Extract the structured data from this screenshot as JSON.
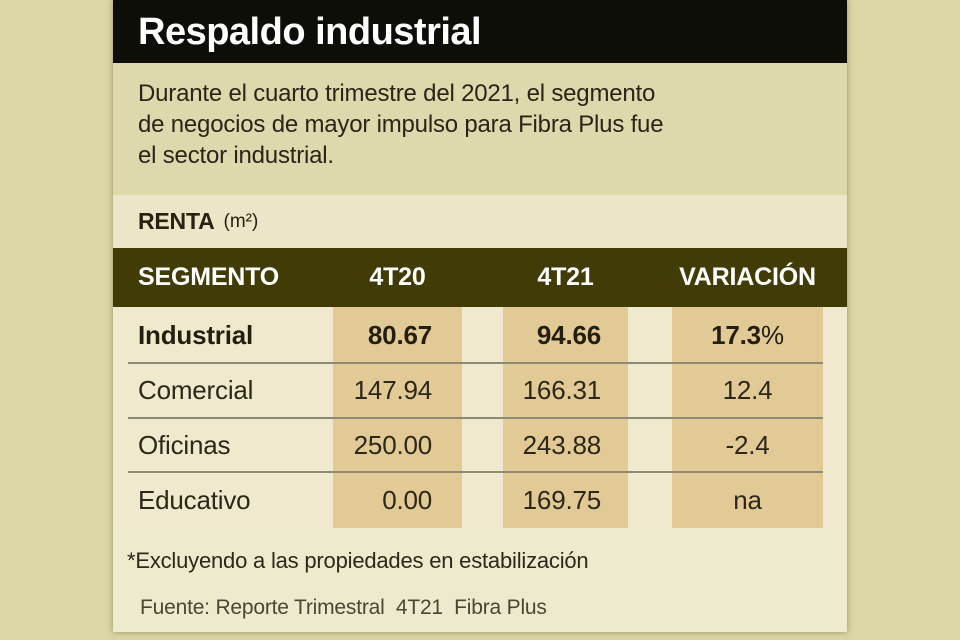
{
  "title": "Respaldo industrial",
  "intro": {
    "lines": [
      "Durante el cuarto trimestre del 2021, el segmento",
      "de negocios de mayor impulso para Fibra Plus fue",
      "el sector industrial."
    ]
  },
  "section": {
    "label": "RENTA",
    "unit": "(m²)"
  },
  "table": {
    "headers": {
      "segmento": "SEGMENTO",
      "c4t20": "4T20",
      "c4t21": "4T21",
      "variacion": "VARIACIÓN"
    },
    "rows": [
      {
        "label": "Industrial",
        "v4t20": "80.67",
        "v4t21": "94.66",
        "variacion": "17.3",
        "variacion_suffix": "%"
      },
      {
        "label": "Comercial",
        "v4t20": "147.94",
        "v4t21": "166.31",
        "variacion": "12.4",
        "variacion_suffix": ""
      },
      {
        "label": "Oficinas",
        "v4t20": "250.00",
        "v4t21": "243.88",
        "variacion": "-2.4",
        "variacion_suffix": ""
      },
      {
        "label": "Educativo",
        "v4t20": "0.00",
        "v4t21": "169.75",
        "variacion": "na",
        "variacion_suffix": ""
      }
    ]
  },
  "footnote": "*Excluyendo a las propiedades en estabilización",
  "source": "Fuente: Reporte Trimestral  4T21  Fibra Plus",
  "colors": {
    "page_background": "#dcd5a5",
    "title_bar": "#0c0e07",
    "title_text": "#ffffff",
    "intro_background": "#ded8ad",
    "renta_strip_background": "#ebe6c8",
    "header_row_background": "#413c06",
    "header_row_text": "#ffffff",
    "body_background": "#efeace",
    "column_stripe": "#e2ca96",
    "row_divider": "#8f8a74",
    "dark_text": "#241e0f",
    "source_text": "#4b4632"
  },
  "chart_data": {
    "type": "table",
    "title": "Respaldo industrial",
    "subtitle": "Durante el cuarto trimestre del 2021, el segmento de negocios de mayor impulso para Fibra Plus fue el sector industrial.",
    "section_label": "RENTA (m²)",
    "columns": [
      "SEGMENTO",
      "4T20",
      "4T21",
      "VARIACIÓN"
    ],
    "rows": [
      [
        "Industrial",
        80.67,
        94.66,
        "17.3%"
      ],
      [
        "Comercial",
        147.94,
        166.31,
        12.4
      ],
      [
        "Oficinas",
        250.0,
        243.88,
        -2.4
      ],
      [
        "Educativo",
        0.0,
        169.75,
        "na"
      ]
    ],
    "footnote": "*Excluyendo a las propiedades en estabilización",
    "source": "Fuente: Reporte Trimestral 4T21 Fibra Plus"
  }
}
